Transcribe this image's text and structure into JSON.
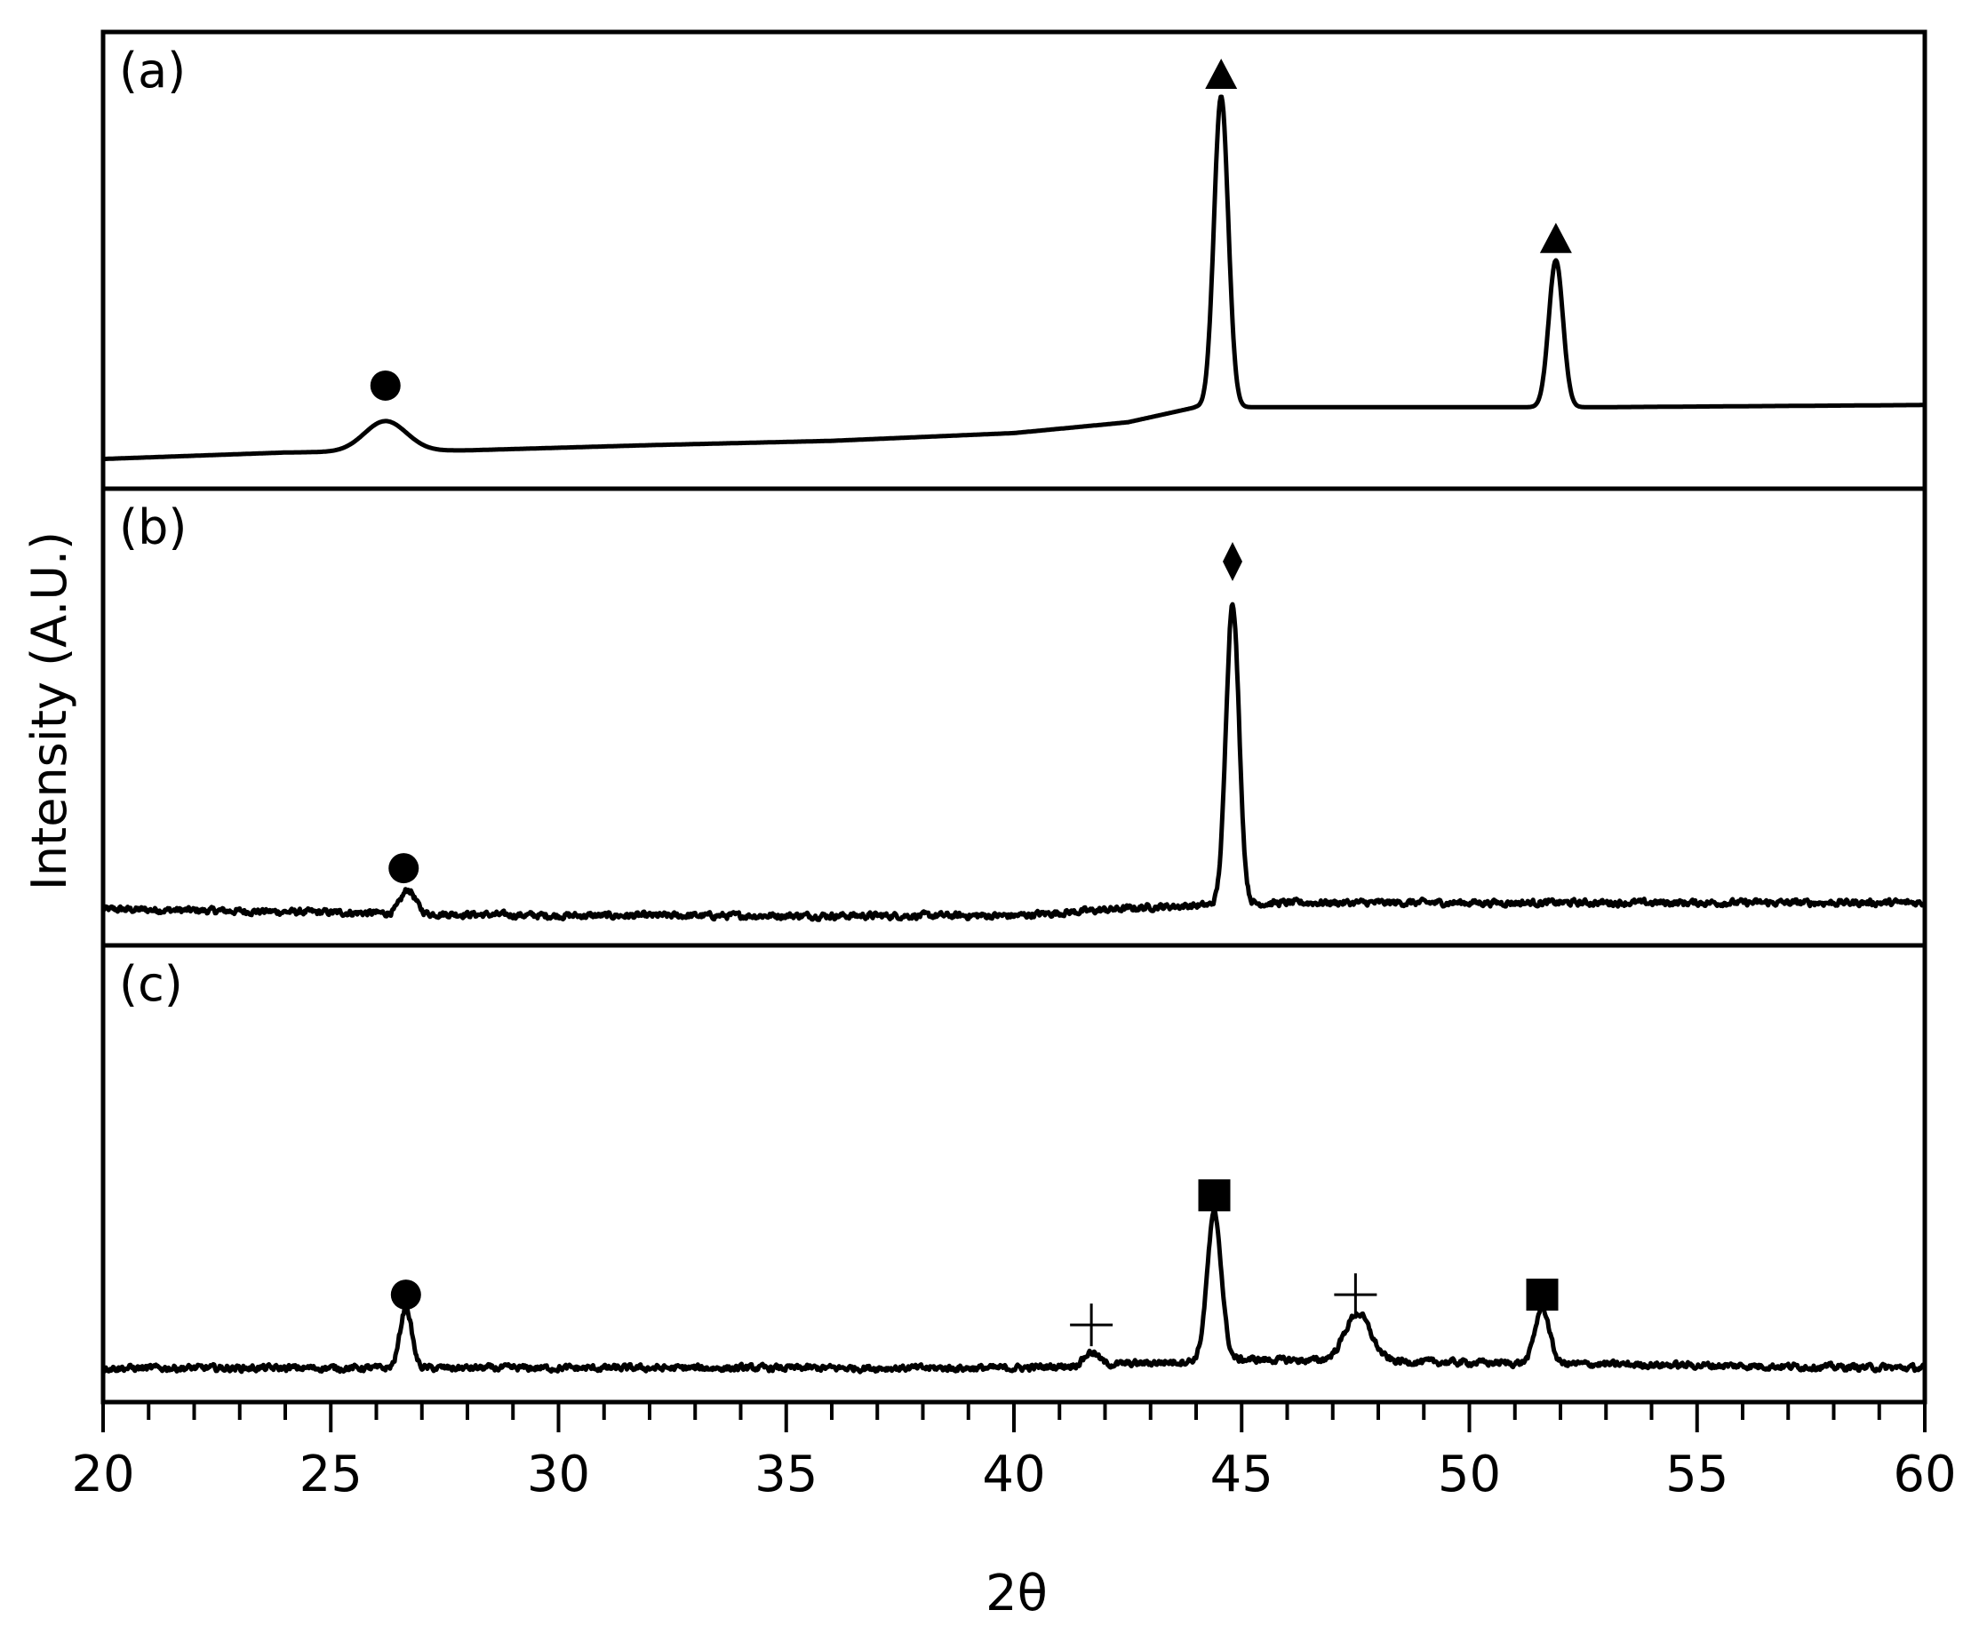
{
  "chart_data": {
    "type": "line",
    "xlabel": "2θ",
    "ylabel": "Intensity (A.U.)",
    "xlim": [
      20,
      60
    ],
    "x_ticks": [
      "20",
      "25",
      "30",
      "35",
      "40",
      "45",
      "50",
      "55",
      "60"
    ],
    "x_minor_step": 1,
    "ylim": [
      0,
      1
    ],
    "panels": [
      {
        "label": "(a)",
        "series": {
          "baseline": [
            [
              20,
              0.04
            ],
            [
              24,
              0.055
            ],
            [
              28,
              0.06
            ],
            [
              32,
              0.072
            ],
            [
              36,
              0.082
            ],
            [
              40,
              0.1
            ],
            [
              42.5,
              0.125
            ],
            [
              44,
              0.16
            ],
            [
              46,
              0.16
            ],
            [
              51,
              0.16
            ],
            [
              53,
              0.16
            ],
            [
              60,
              0.165
            ]
          ],
          "peaks": [
            {
              "x": 26.2,
              "height": 0.07,
              "width": 0.65
            },
            {
              "x": 44.55,
              "height": 0.72,
              "width": 0.22
            },
            {
              "x": 51.9,
              "height": 0.34,
              "width": 0.22
            }
          ],
          "noise": 0
        },
        "markers": [
          {
            "x": 26.2,
            "symbol": "circle",
            "level": 0.21
          },
          {
            "x": 44.55,
            "symbol": "triangle",
            "level": 0.93
          },
          {
            "x": 51.9,
            "symbol": "triangle",
            "level": 0.55
          }
        ]
      },
      {
        "label": "(b)",
        "series": {
          "baseline": [
            [
              20,
              0.055
            ],
            [
              30,
              0.04
            ],
            [
              40,
              0.04
            ],
            [
              43,
              0.06
            ],
            [
              46,
              0.07
            ],
            [
              60,
              0.07
            ]
          ],
          "peaks": [
            {
              "x": 26.7,
              "height": 0.055,
              "width": 0.22
            },
            {
              "x": 44.8,
              "height": 0.7,
              "width": 0.2
            }
          ],
          "noise": 0.006
        },
        "markers": [
          {
            "x": 26.6,
            "symbol": "circle",
            "level": 0.15
          },
          {
            "x": 44.8,
            "symbol": "diamond",
            "level": 0.86
          }
        ]
      },
      {
        "label": "(c)",
        "series": {
          "baseline": [
            [
              20,
              0.05
            ],
            [
              40,
              0.05
            ],
            [
              45,
              0.07
            ],
            [
              52,
              0.06
            ],
            [
              60,
              0.05
            ]
          ],
          "peaks": [
            {
              "x": 26.65,
              "height": 0.14,
              "width": 0.18
            },
            {
              "x": 41.7,
              "height": 0.03,
              "width": 0.22
            },
            {
              "x": 44.4,
              "height": 0.34,
              "width": 0.22
            },
            {
              "x": 47.55,
              "height": 0.11,
              "width": 0.4
            },
            {
              "x": 51.6,
              "height": 0.13,
              "width": 0.22
            }
          ],
          "noise": 0.006
        },
        "markers": [
          {
            "x": 26.65,
            "symbol": "circle",
            "level": 0.22
          },
          {
            "x": 41.7,
            "symbol": "plus",
            "level": 0.15
          },
          {
            "x": 44.4,
            "symbol": "square",
            "level": 0.45
          },
          {
            "x": 47.5,
            "symbol": "plus",
            "level": 0.22
          },
          {
            "x": 51.6,
            "symbol": "square",
            "level": 0.22
          }
        ]
      }
    ]
  }
}
